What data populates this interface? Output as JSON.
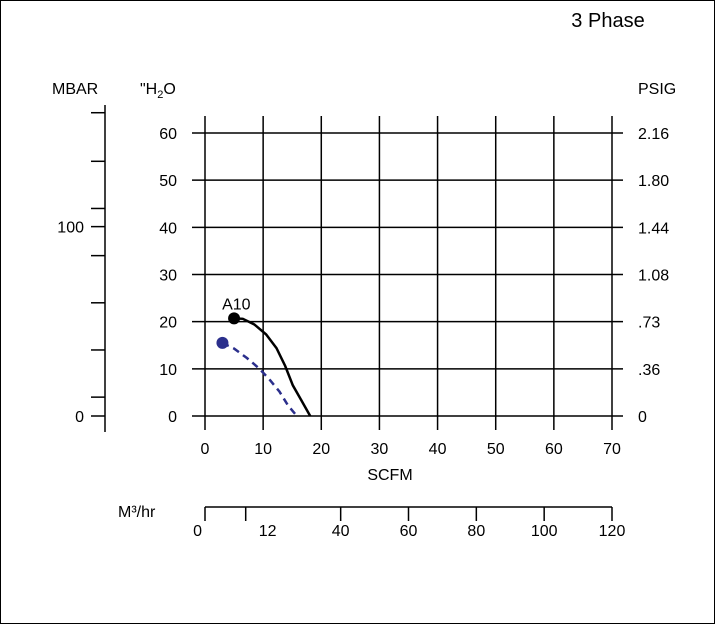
{
  "title": "3 Phase",
  "chart_data": {
    "type": "line",
    "x_label": "SCFM",
    "x_ticks": [
      "0",
      "10",
      "20",
      "30",
      "40",
      "50",
      "60",
      "70"
    ],
    "x_range": [
      0,
      70
    ],
    "y_label": "\"H2O",
    "y_ticks": [
      "0",
      "10",
      "20",
      "30",
      "40",
      "50",
      "60"
    ],
    "y_range": [
      0,
      60
    ],
    "grid": true,
    "secondary_axes": {
      "mbar": {
        "label": "MBAR",
        "tick_labels": [
          {
            "label": "100",
            "h2o": 40.15
          },
          {
            "label": "0",
            "h2o": 0
          }
        ],
        "minor_ticks_h2o": [
          64.3,
          54.0,
          44.0,
          34.0,
          24.0,
          14.0,
          4.0
        ]
      },
      "psig": {
        "label": "PSIG",
        "tick_labels": [
          {
            "label": "2.16",
            "h2o": 60
          },
          {
            "label": "1.80",
            "h2o": 50
          },
          {
            "label": "1.44",
            "h2o": 40
          },
          {
            "label": "1.08",
            "h2o": 30
          },
          {
            "label": ".73",
            "h2o": 20
          },
          {
            "label": ".36",
            "h2o": 10
          },
          {
            "label": "0",
            "h2o": 0
          }
        ]
      },
      "m3hr": {
        "label": "M³/hr",
        "range": [
          0,
          120
        ],
        "tick_labels": [
          {
            "label": "0",
            "value": 0
          },
          {
            "label": "12",
            "value": 12
          },
          {
            "label": "40",
            "value": 40
          },
          {
            "label": "60",
            "value": 60
          },
          {
            "label": "80",
            "value": 80
          },
          {
            "label": "100",
            "value": 100
          },
          {
            "label": "120",
            "value": 120
          }
        ]
      }
    },
    "series": [
      {
        "name": "A10",
        "color": "#000000",
        "dash": false,
        "start_marker": true,
        "points": [
          [
            5,
            20.7
          ],
          [
            6.5,
            20.6
          ],
          [
            8.5,
            19.4
          ],
          [
            10.5,
            17.3
          ],
          [
            12.3,
            14.4
          ],
          [
            13.8,
            10.6
          ],
          [
            15.1,
            6.5
          ],
          [
            16.5,
            3.5
          ],
          [
            18.1,
            0
          ]
        ]
      },
      {
        "name": "",
        "color": "#2b2f8c",
        "dash": true,
        "start_marker": true,
        "points": [
          [
            3,
            15.5
          ],
          [
            5,
            14.3
          ],
          [
            7.2,
            12.3
          ],
          [
            9.3,
            10.1
          ],
          [
            11.2,
            7.6
          ],
          [
            12.8,
            5.2
          ],
          [
            14.3,
            2.2
          ],
          [
            15.8,
            0
          ]
        ]
      }
    ]
  }
}
